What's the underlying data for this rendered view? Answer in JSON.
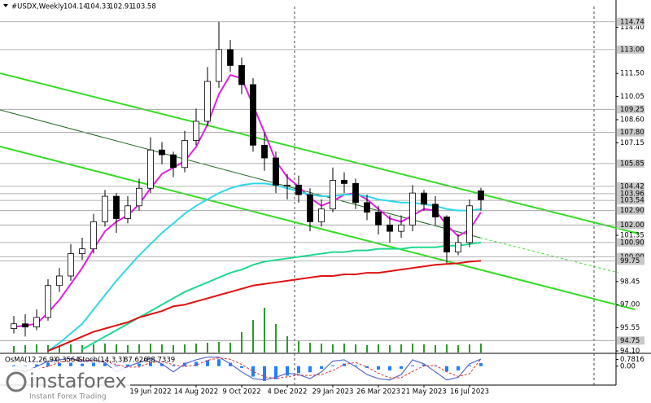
{
  "chart_data": {
    "type": "candlestick",
    "symbol": "#USDX,Weekly",
    "ylim": [
      94.0,
      115.8
    ],
    "yticks": [
      {
        "value": 114.4,
        "label": "114.40"
      },
      {
        "value": 111.5,
        "label": "111.50"
      },
      110.05,
      {
        "value": 108.6,
        "label": "108.60"
      },
      107.15,
      101.35,
      98.45,
      {
        "value": 97.0,
        "label": "97.00"
      },
      95.55,
      {
        "value": 94.1,
        "label": "94.10"
      }
    ],
    "levels": [
      114.74,
      {
        "value": 113.0,
        "label": "113.00"
      },
      109.25,
      {
        "value": 107.8,
        "label": "107.80"
      },
      105.85,
      104.42,
      103.96,
      103.54,
      {
        "value": 102.9,
        "label": "102.90"
      },
      {
        "value": 102.0,
        "label": "102.00"
      },
      {
        "value": 100.9,
        "label": "100.90"
      },
      {
        "value": 100.0,
        "label": "100.00"
      },
      99.75,
      94.75
    ],
    "categories": [
      null,
      null,
      null,
      null,
      null,
      null,
      null,
      null,
      null,
      null,
      null,
      null,
      "19 Jun 2022",
      null,
      null,
      null,
      "14 Aug 2022",
      null,
      null,
      null,
      "9 Oct 2022",
      null,
      null,
      null,
      "4 Dec 2022",
      null,
      null,
      null,
      "29 Jan 2023",
      null,
      null,
      null,
      "26 Mar 2023",
      null,
      null,
      null,
      "21 May 2023",
      null,
      null,
      null,
      "16 Jul 2023",
      null
    ],
    "open": [
      95.5,
      95.8,
      95.6,
      96.2,
      98.2,
      98.8,
      100.2,
      100.5,
      102.2,
      103.8,
      102.4,
      103.2,
      104.3,
      106.7,
      106.4,
      105.6,
      107.3,
      108.5,
      111.0,
      113.0,
      112.0,
      110.8,
      107.0,
      106.2,
      104.5,
      104.5,
      103.9,
      102.2,
      103.0,
      104.8,
      104.6,
      103.4,
      102.8,
      102.0,
      101.6,
      102.0,
      104.0,
      103.3,
      102.5,
      100.3,
      100.9,
      104.14
    ],
    "high": [
      96.3,
      96.4,
      96.7,
      98.6,
      99.3,
      100.8,
      101.2,
      102.7,
      104.2,
      104.0,
      103.8,
      104.9,
      107.5,
      107.2,
      106.6,
      107.9,
      109.3,
      111.9,
      114.74,
      113.6,
      112.5,
      111.2,
      107.8,
      106.6,
      105.2,
      105.1,
      104.3,
      103.6,
      105.6,
      105.3,
      104.9,
      103.9,
      103.2,
      102.6,
      102.6,
      104.5,
      104.2,
      103.8,
      102.6,
      101.4,
      103.6,
      104.33
    ],
    "low": [
      95.2,
      95.0,
      95.4,
      96.0,
      97.8,
      98.5,
      99.8,
      100.2,
      101.9,
      101.5,
      102.1,
      102.9,
      104.0,
      105.8,
      105.0,
      105.3,
      107.0,
      108.2,
      110.6,
      111.6,
      110.2,
      106.6,
      105.4,
      104.0,
      103.6,
      103.4,
      101.6,
      101.9,
      102.8,
      104.0,
      103.0,
      102.3,
      101.4,
      100.9,
      101.2,
      101.6,
      102.9,
      102.0,
      99.6,
      100.1,
      100.6,
      102.91
    ],
    "close": [
      95.8,
      95.6,
      96.2,
      98.2,
      98.8,
      100.2,
      100.5,
      102.2,
      103.8,
      102.4,
      103.2,
      104.3,
      106.7,
      106.4,
      105.6,
      107.3,
      108.5,
      111.0,
      113.0,
      112.0,
      110.8,
      107.0,
      106.2,
      104.5,
      104.5,
      103.9,
      102.2,
      103.0,
      104.8,
      104.6,
      103.4,
      102.8,
      102.0,
      101.6,
      102.0,
      104.0,
      103.3,
      102.5,
      100.3,
      100.9,
      103.2,
      103.58
    ],
    "series": [
      {
        "color": "#e020e0",
        "values": [
          95.6,
          95.7,
          95.8,
          96.5,
          97.3,
          98.3,
          99.3,
          100.5,
          101.6,
          102.2,
          102.6,
          103.3,
          104.3,
          105.2,
          105.6,
          106.0,
          106.9,
          108.3,
          110.2,
          111.4,
          111.2,
          109.5,
          107.8,
          106.0,
          105.0,
          104.4,
          103.7,
          103.2,
          103.5,
          103.9,
          104.0,
          103.6,
          103.0,
          102.4,
          102.2,
          102.6,
          103.0,
          102.9,
          102.0,
          101.3,
          101.7,
          102.8
        ]
      },
      {
        "color": "#30d8e8",
        "values": [
          null,
          null,
          null,
          94.1,
          94.6,
          95.2,
          95.8,
          96.7,
          97.6,
          98.5,
          99.3,
          100.1,
          100.8,
          101.5,
          102.1,
          102.7,
          103.2,
          103.6,
          104.0,
          104.3,
          104.5,
          104.6,
          104.6,
          104.5,
          104.3,
          104.1,
          103.9,
          103.8,
          103.8,
          103.9,
          103.9,
          103.8,
          103.6,
          103.5,
          103.4,
          103.4,
          103.3,
          103.2,
          103.0,
          102.9,
          102.9,
          103.0
        ]
      },
      {
        "color": "#20d890",
        "values": [
          null,
          null,
          null,
          null,
          null,
          null,
          94.2,
          94.6,
          95.0,
          95.4,
          95.8,
          96.2,
          96.6,
          97.0,
          97.4,
          97.8,
          98.1,
          98.4,
          98.7,
          99.0,
          99.2,
          99.5,
          99.7,
          99.8,
          99.9,
          100.0,
          100.1,
          100.2,
          100.3,
          100.3,
          100.4,
          100.4,
          100.5,
          100.5,
          100.5,
          100.6,
          100.6,
          100.6,
          100.7,
          100.7,
          100.8,
          100.9
        ]
      },
      {
        "color": "#e01010",
        "values": [
          null,
          null,
          null,
          94.1,
          94.4,
          94.7,
          95.0,
          95.3,
          95.5,
          95.7,
          95.9,
          96.2,
          96.4,
          96.6,
          96.9,
          97.0,
          97.2,
          97.4,
          97.6,
          97.8,
          98.0,
          98.2,
          98.3,
          98.4,
          98.5,
          98.6,
          98.7,
          98.8,
          98.8,
          98.9,
          98.9,
          99.0,
          99.0,
          99.1,
          99.2,
          99.3,
          99.4,
          99.5,
          99.55,
          99.6,
          99.7,
          99.75
        ]
      }
    ],
    "volumes": {
      "color": "#2a9a2a",
      "values": [
        8,
        9,
        10,
        9,
        8,
        10,
        9,
        10,
        11,
        10,
        9,
        10,
        11,
        10,
        9,
        10,
        11,
        12,
        13,
        12,
        25,
        40,
        55,
        35,
        20,
        14,
        12,
        11,
        10,
        11,
        10,
        9,
        10,
        9,
        10,
        11,
        10,
        9,
        10,
        9,
        10,
        11
      ]
    },
    "indicator": {
      "title": "OsMA(12,26,9)",
      "stoch_title": "Stoch(14,3,3)",
      "ylim": [
        -1.9,
        1.2
      ],
      "yticks": [
        {
          "value": 0.7816,
          "label": "0.7816"
        },
        {
          "value": 0.0,
          "label": "0.00"
        }
      ],
      "osma": {
        "color": "#2080ff",
        "values": [
          0.1,
          0.05,
          0.2,
          0.4,
          0.35,
          0.4,
          0.3,
          0.4,
          0.35,
          0.1,
          0.2,
          0.3,
          0.5,
          0.3,
          0.1,
          0.4,
          0.5,
          0.7,
          0.8,
          0.4,
          -0.2,
          -1.2,
          -1.7,
          -1.5,
          -1.1,
          -0.8,
          -0.7,
          -0.3,
          0.1,
          0.3,
          0.1,
          -0.2,
          -0.4,
          -0.5,
          -0.3,
          0.1,
          0.2,
          0.0,
          -0.6,
          -0.5,
          0.1,
          0.3564
        ]
      },
      "stoch_lim": [
        0,
        100
      ],
      "stoch_main": {
        "color": "#5a6acd",
        "values": [
          50,
          40,
          60,
          80,
          85,
          90,
          80,
          85,
          75,
          40,
          60,
          75,
          90,
          70,
          40,
          70,
          85,
          95,
          95,
          70,
          40,
          15,
          10,
          20,
          35,
          30,
          15,
          40,
          80,
          85,
          60,
          30,
          15,
          10,
          30,
          85,
          70,
          40,
          10,
          20,
          70,
          87.626
        ]
      },
      "stoch_signal": {
        "color": "#e03030",
        "values": [
          45,
          45,
          50,
          60,
          75,
          85,
          85,
          82,
          80,
          67,
          58,
          58,
          75,
          78,
          67,
          60,
          65,
          83,
          92,
          87,
          68,
          42,
          22,
          15,
          22,
          28,
          27,
          30,
          45,
          68,
          75,
          58,
          35,
          18,
          18,
          42,
          62,
          65,
          40,
          23,
          33,
          88.7339
        ]
      }
    },
    "watermark": {
      "brand": "instaforex",
      "tagline": "Instant Forex Trading"
    }
  }
}
